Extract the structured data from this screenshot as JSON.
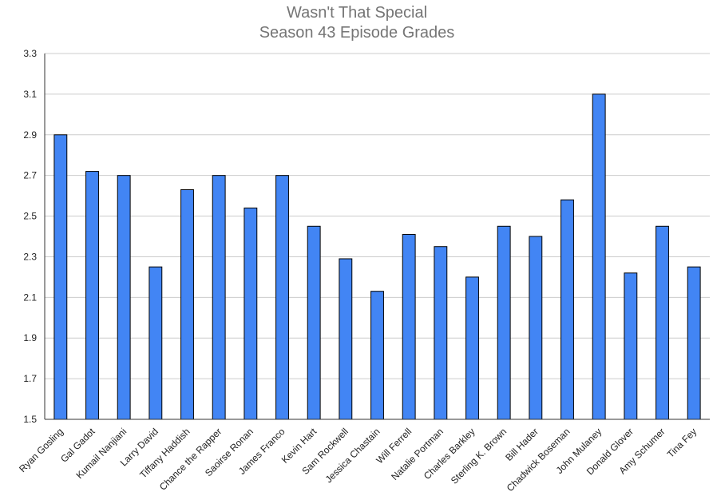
{
  "chart_data": {
    "type": "bar",
    "title": "Wasn't That Special",
    "subtitle": "Season 43 Episode Grades",
    "xlabel": "",
    "ylabel": "",
    "ylim": [
      1.5,
      3.3
    ],
    "yticks": [
      "1.5",
      "1.7",
      "1.9",
      "2.1",
      "2.3",
      "2.5",
      "2.7",
      "2.9",
      "3.1",
      "3.3"
    ],
    "grid": true,
    "legend": "none",
    "bar_color": "#4285f4",
    "categories": [
      "Ryan Gosling",
      "Gal Gadot",
      "Kumail Nanjiani",
      "Larry David",
      "Tiffany Haddish",
      "Chance the Rapper",
      "Saoirse Ronan",
      "James Franco",
      "Kevin Hart",
      "Sam Rockwell",
      "Jessica Chastain",
      "Will Ferrell",
      "Natalie Portman",
      "Charles Barkley",
      "Sterling K. Brown",
      "Bill Hader",
      "Chadwick Boseman",
      "John Mulaney",
      "Donald Glover",
      "Amy Schumer",
      "Tina Fey"
    ],
    "values": [
      2.9,
      2.72,
      2.7,
      2.25,
      2.63,
      2.7,
      2.54,
      2.7,
      2.45,
      2.29,
      2.13,
      2.41,
      2.35,
      2.2,
      2.45,
      2.4,
      2.58,
      3.1,
      2.22,
      2.45,
      2.25
    ]
  }
}
